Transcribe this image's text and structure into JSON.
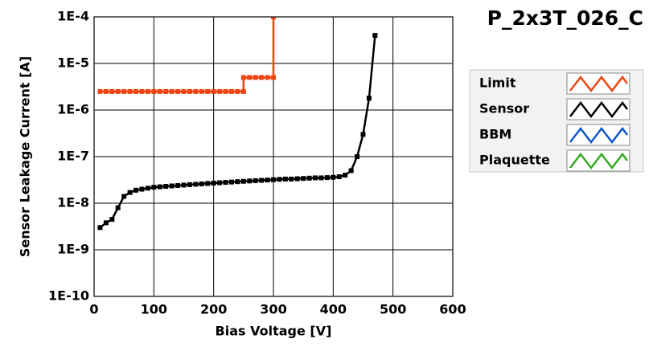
{
  "chart_data": {
    "type": "line",
    "title": "P_2x3T_026_C",
    "x_label": "Bias Voltage [V]",
    "y_label": "Sensor Leakage Current [A]",
    "xlim": [
      0,
      600
    ],
    "xticks": [
      0,
      100,
      200,
      300,
      400,
      500,
      600
    ],
    "ylim": [
      1e-10,
      0.0001
    ],
    "log_y": true,
    "yticks": [
      {
        "value": 1e-10,
        "label": "1E-10"
      },
      {
        "value": 1e-09,
        "label": "1E-9"
      },
      {
        "value": 1e-08,
        "label": "1E-8"
      },
      {
        "value": 1e-07,
        "label": "1E-7"
      },
      {
        "value": 1e-06,
        "label": "1E-6"
      },
      {
        "value": 1e-05,
        "label": "1E-5"
      },
      {
        "value": 0.0001,
        "label": "1E-4"
      }
    ],
    "grid": true,
    "series": [
      {
        "name": "Limit",
        "color": "#ee4411",
        "x": [
          10,
          20,
          30,
          40,
          50,
          60,
          70,
          80,
          90,
          100,
          110,
          120,
          130,
          140,
          150,
          160,
          170,
          180,
          190,
          200,
          210,
          220,
          230,
          240,
          250,
          250,
          260,
          270,
          280,
          290,
          300,
          300
        ],
        "values": [
          2.5e-06,
          2.5e-06,
          2.5e-06,
          2.5e-06,
          2.5e-06,
          2.5e-06,
          2.5e-06,
          2.5e-06,
          2.5e-06,
          2.5e-06,
          2.5e-06,
          2.5e-06,
          2.5e-06,
          2.5e-06,
          2.5e-06,
          2.5e-06,
          2.5e-06,
          2.5e-06,
          2.5e-06,
          2.5e-06,
          2.5e-06,
          2.5e-06,
          2.5e-06,
          2.5e-06,
          2.5e-06,
          5e-06,
          5e-06,
          5e-06,
          5e-06,
          5e-06,
          5e-06,
          0.0001
        ]
      },
      {
        "name": "Sensor",
        "color": "#000000",
        "x": [
          10,
          20,
          30,
          40,
          50,
          60,
          70,
          80,
          90,
          100,
          110,
          120,
          130,
          140,
          150,
          160,
          170,
          180,
          190,
          200,
          210,
          220,
          230,
          240,
          250,
          260,
          270,
          280,
          290,
          300,
          310,
          320,
          330,
          340,
          350,
          360,
          370,
          380,
          390,
          400,
          410,
          420,
          430,
          440,
          450,
          460,
          470
        ],
        "values": [
          3e-09,
          3.8e-09,
          4.5e-09,
          8e-09,
          1.4e-08,
          1.7e-08,
          1.9e-08,
          2e-08,
          2.1e-08,
          2.2e-08,
          2.25e-08,
          2.3e-08,
          2.35e-08,
          2.4e-08,
          2.45e-08,
          2.5e-08,
          2.55e-08,
          2.6e-08,
          2.65e-08,
          2.7e-08,
          2.75e-08,
          2.8e-08,
          2.85e-08,
          2.9e-08,
          2.95e-08,
          3e-08,
          3.05e-08,
          3.1e-08,
          3.15e-08,
          3.2e-08,
          3.25e-08,
          3.3e-08,
          3.3e-08,
          3.35e-08,
          3.4e-08,
          3.45e-08,
          3.5e-08,
          3.5e-08,
          3.55e-08,
          3.6e-08,
          3.7e-08,
          4e-08,
          5e-08,
          1e-07,
          3e-07,
          1.8e-06,
          4e-05
        ]
      },
      {
        "name": "BBM",
        "color": "#1155cc",
        "x": [],
        "values": []
      },
      {
        "name": "Plaquette",
        "color": "#33aa22",
        "x": [],
        "values": []
      }
    ]
  }
}
